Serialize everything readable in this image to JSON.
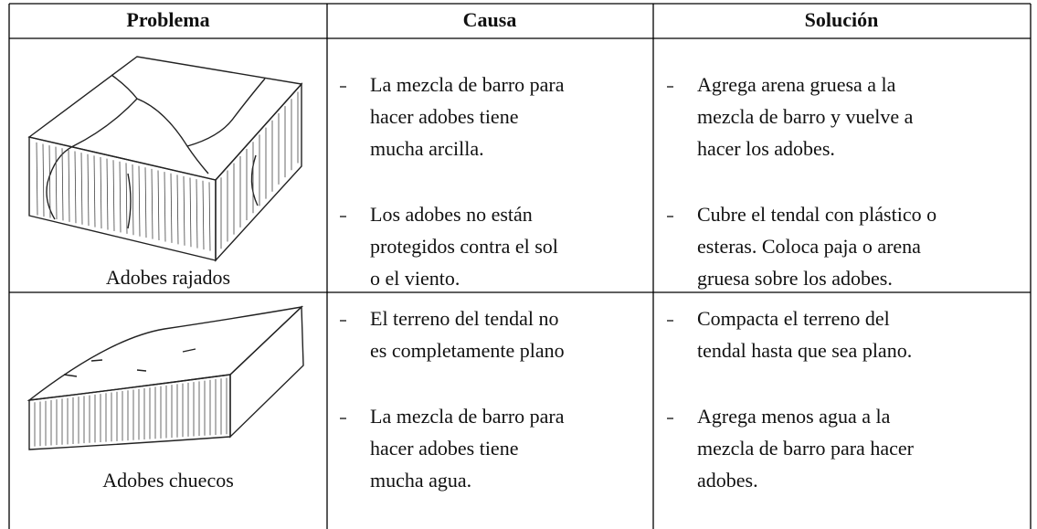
{
  "table": {
    "headers": [
      "Problema",
      "Causa",
      "Solución"
    ],
    "rows": [
      {
        "problem": "Adobes rajados",
        "causes": [
          [
            "La mezcla de barro para",
            "hacer adobes tiene",
            "mucha arcilla."
          ],
          [
            "Los adobes no están",
            "protegidos contra el sol",
            "o el viento."
          ]
        ],
        "solutions": [
          [
            "Agrega arena gruesa a la",
            "mezcla de barro y vuelve a",
            "hacer los adobes."
          ],
          [
            "Cubre el tendal con plástico o",
            "esteras. Coloca paja o arena",
            "gruesa sobre los adobes."
          ]
        ]
      },
      {
        "problem": "Adobes chuecos",
        "causes": [
          [
            "El terreno del tendal no",
            "es completamente plano"
          ],
          [
            "La mezcla de barro para",
            "hacer adobes tiene",
            "mucha agua."
          ]
        ],
        "solutions": [
          [
            "Compacta el terreno del",
            "tendal hasta que sea plano."
          ],
          [
            "Agrega menos agua a la",
            "mezcla de barro para hacer",
            "adobes."
          ]
        ]
      }
    ]
  }
}
